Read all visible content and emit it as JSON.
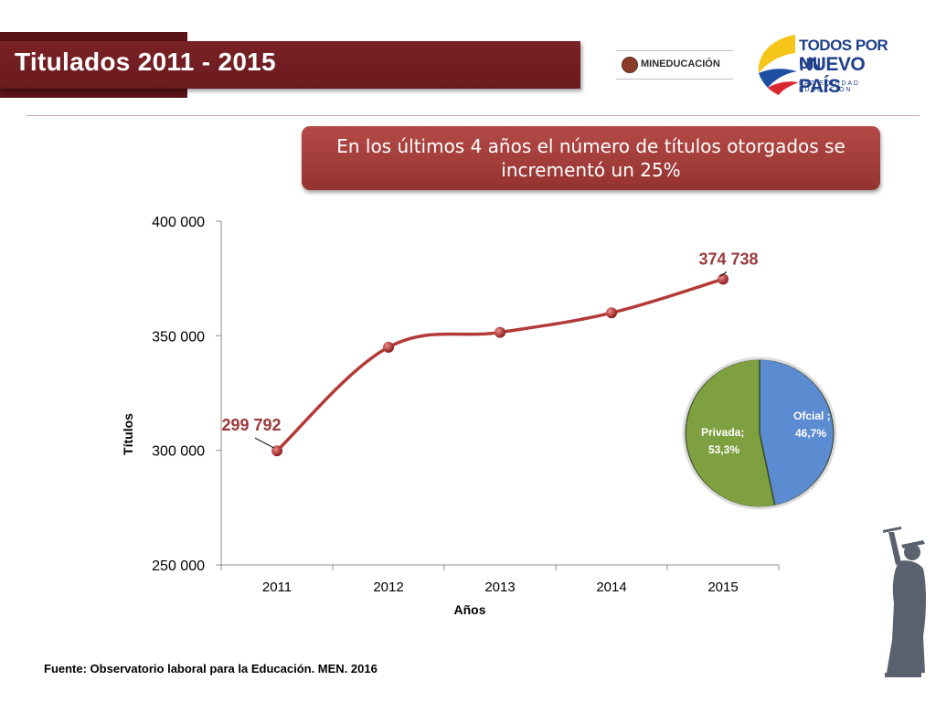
{
  "header": {
    "title": "Titulados 2011 - 2015",
    "logo_men": "MINEDUCACIÓN",
    "logo_tpun_line1": "TODOS POR UN",
    "logo_tpun_line2": "NUEVO PAÍS",
    "logo_tpun_line3": "PAZ EQUIDAD EDUCACIÓN"
  },
  "callout": {
    "text": "En los últimos 4 años el número de títulos otorgados se incrementó un 25%"
  },
  "source": "Fuente: Observatorio laboral para la Educación. MEN. 2016",
  "chart_data": [
    {
      "type": "line",
      "categories": [
        "2011",
        "2012",
        "2013",
        "2014",
        "2015"
      ],
      "series": [
        {
          "values": [
            299792,
            345000,
            351500,
            360000,
            374738
          ],
          "color": "#b33a37"
        }
      ],
      "ylim": [
        250000,
        400000
      ],
      "yticks": [
        250000,
        300000,
        350000,
        400000
      ],
      "ytick_labels": [
        "250 000",
        "300 000",
        "350 000",
        "400 000"
      ],
      "xlabel": "Años",
      "ylabel": "Títulos",
      "data_labels": [
        {
          "category": "2011",
          "text": "299 792"
        },
        {
          "category": "2015",
          "text": "374 738"
        }
      ],
      "grid": false
    },
    {
      "type": "pie",
      "slices": [
        {
          "label": "Ofcial ;",
          "value_text": "46,7%",
          "value": 46.7,
          "color": "#5b8bd0"
        },
        {
          "label": "Privada;",
          "value_text": "53,3%",
          "value": 53.3,
          "color": "#7fa040"
        }
      ]
    }
  ]
}
